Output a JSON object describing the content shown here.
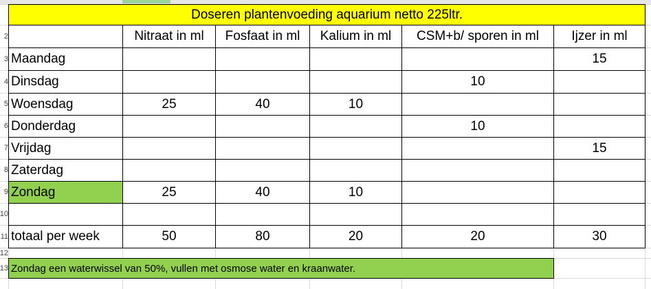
{
  "sheet": {
    "title": "Doseren plantenvoeding aquarium netto 225ltr.",
    "headers": [
      "Nitraat in ml",
      "Fosfaat in ml",
      "Kalium in ml",
      "CSM+b/ sporen in ml",
      "Ijzer in ml"
    ],
    "rows": [
      {
        "label": "Maandag",
        "values": [
          null,
          null,
          null,
          null,
          15
        ]
      },
      {
        "label": "Dinsdag",
        "values": [
          null,
          null,
          null,
          10,
          null
        ]
      },
      {
        "label": "Woensdag",
        "values": [
          25,
          40,
          10,
          null,
          null
        ]
      },
      {
        "label": "Donderdag",
        "values": [
          null,
          null,
          null,
          10,
          null
        ]
      },
      {
        "label": "Vrijdag",
        "values": [
          null,
          null,
          null,
          null,
          15
        ]
      },
      {
        "label": "Zaterdag",
        "values": [
          null,
          null,
          null,
          null,
          null
        ]
      },
      {
        "label": "Zondag",
        "values": [
          25,
          40,
          10,
          null,
          null
        ]
      },
      {
        "label": null,
        "values": [
          null,
          null,
          null,
          null,
          null
        ]
      },
      {
        "label": "totaal per week",
        "values": [
          50,
          80,
          20,
          20,
          30
        ]
      }
    ],
    "note": "Zondag een waterwissel van 50%, vullen met osmose water en kraanwater.",
    "row_numbers": [
      2,
      3,
      4,
      5,
      6,
      7,
      8,
      9,
      10,
      11,
      12,
      13
    ]
  }
}
